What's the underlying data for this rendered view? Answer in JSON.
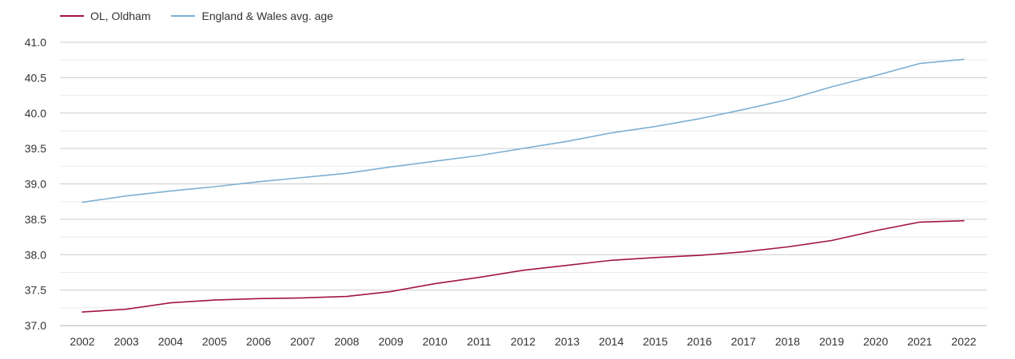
{
  "chart_data": {
    "type": "line",
    "title": "",
    "xlabel": "",
    "ylabel": "",
    "x": [
      "2002",
      "2003",
      "2004",
      "2005",
      "2006",
      "2007",
      "2008",
      "2009",
      "2010",
      "2011",
      "2012",
      "2013",
      "2014",
      "2015",
      "2016",
      "2017",
      "2018",
      "2019",
      "2020",
      "2021",
      "2022"
    ],
    "ylim": [
      37.0,
      41.0
    ],
    "yticks": [
      "37.0",
      "37.5",
      "38.0",
      "38.5",
      "39.0",
      "39.5",
      "40.0",
      "40.5",
      "41.0"
    ],
    "grid": true,
    "legend_position": "top-left",
    "series": [
      {
        "name": "OL, Oldham",
        "color": "#a0153e",
        "values": [
          37.19,
          37.23,
          37.32,
          37.36,
          37.38,
          37.39,
          37.41,
          37.48,
          37.59,
          37.68,
          37.78,
          37.85,
          37.92,
          37.96,
          37.99,
          38.04,
          38.11,
          38.2,
          38.34,
          38.46,
          38.48
        ]
      },
      {
        "name": "England & Wales avg. age",
        "color": "#7eb0d2",
        "values": [
          38.74,
          38.83,
          38.9,
          38.96,
          39.03,
          39.09,
          39.15,
          39.24,
          39.32,
          39.4,
          39.5,
          39.6,
          39.72,
          39.81,
          39.92,
          40.05,
          40.19,
          40.37,
          40.53,
          40.7,
          40.76
        ]
      }
    ]
  }
}
